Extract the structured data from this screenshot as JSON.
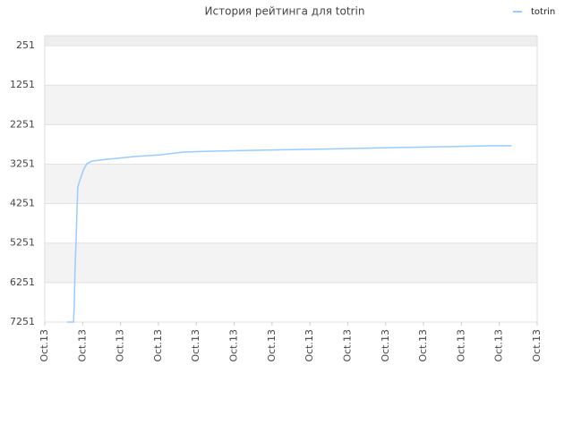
{
  "chart_data": {
    "type": "line",
    "title": "История рейтинга для totrin",
    "x": [
      0.59,
      0.76,
      0.78,
      0.8,
      0.83,
      0.87,
      0.9,
      1.02,
      1.11,
      1.25,
      1.65,
      2.36,
      3.07,
      3.66,
      4.37,
      5.56,
      6.86,
      8.04,
      9.22,
      10.52,
      11.7,
      12.32
    ],
    "series": [
      {
        "name": "totrin",
        "color": "#99ccff",
        "values": [
          7251,
          7251,
          6797,
          5891,
          5098,
          3852,
          3739,
          3400,
          3241,
          3173,
          3128,
          3060,
          3014,
          2946,
          2924,
          2901,
          2878,
          2856,
          2833,
          2810,
          2788,
          2788
        ]
      }
    ],
    "xlim": [
      0,
      13
    ],
    "xticks": [
      {
        "value": 0,
        "label": "Oct.13"
      },
      {
        "value": 1,
        "label": "Oct.13"
      },
      {
        "value": 2,
        "label": "Oct.13"
      },
      {
        "value": 3,
        "label": "Oct.13"
      },
      {
        "value": 4,
        "label": "Oct.13"
      },
      {
        "value": 5,
        "label": "Oct.13"
      },
      {
        "value": 6,
        "label": "Oct.13"
      },
      {
        "value": 7,
        "label": "Oct.13"
      },
      {
        "value": 8,
        "label": "Oct.13"
      },
      {
        "value": 9,
        "label": "Oct.13"
      },
      {
        "value": 10,
        "label": "Oct.13"
      },
      {
        "value": 11,
        "label": "Oct.13"
      },
      {
        "value": 12,
        "label": "Oct.13"
      },
      {
        "value": 13,
        "label": "Oct.13"
      }
    ],
    "ylim": [
      7251,
      0
    ],
    "yticks": [
      251,
      1251,
      2251,
      3251,
      4251,
      5251,
      6251,
      7251
    ],
    "legend": "top-right",
    "grid": true
  }
}
